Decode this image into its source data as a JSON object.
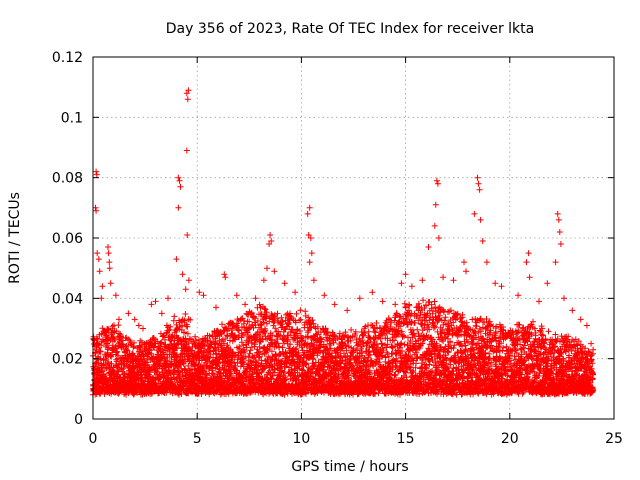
{
  "chart_data": {
    "type": "scatter",
    "title": "Day 356 of 2023, Rate Of TEC Index for receiver lkta",
    "xlabel": "GPS time / hours",
    "ylabel": "ROTI / TECUs",
    "xlim": [
      0,
      25
    ],
    "ylim": [
      0,
      0.12
    ],
    "x_ticks": [
      0,
      5,
      10,
      15,
      20,
      25
    ],
    "x_tick_labels": [
      "0",
      "5",
      "10",
      "15",
      "20",
      "25"
    ],
    "y_ticks": [
      0,
      0.02,
      0.04,
      0.06,
      0.08,
      0.1,
      0.12
    ],
    "y_tick_labels": [
      "0",
      "0.02",
      "0.04",
      "0.06",
      "0.08",
      "0.1",
      "0.12"
    ],
    "grid": true,
    "marker": "+",
    "series": [
      {
        "name": "ROTI",
        "color": "#ff0000",
        "points": [
          [
            0.1,
            0.022
          ],
          [
            0.15,
            0.082
          ],
          [
            0.18,
            0.081
          ],
          [
            0.12,
            0.07
          ],
          [
            0.15,
            0.069
          ],
          [
            0.2,
            0.055
          ],
          [
            0.28,
            0.053
          ],
          [
            0.32,
            0.049
          ],
          [
            0.45,
            0.044
          ],
          [
            0.4,
            0.04
          ],
          [
            0.72,
            0.057
          ],
          [
            0.75,
            0.055
          ],
          [
            0.78,
            0.052
          ],
          [
            0.8,
            0.05
          ],
          [
            0.85,
            0.045
          ],
          [
            1.1,
            0.041
          ],
          [
            1.25,
            0.033
          ],
          [
            1.7,
            0.035
          ],
          [
            2.0,
            0.033
          ],
          [
            2.2,
            0.031
          ],
          [
            2.4,
            0.03
          ],
          [
            2.8,
            0.038
          ],
          [
            3.0,
            0.039
          ],
          [
            3.3,
            0.035
          ],
          [
            3.6,
            0.04
          ],
          [
            3.9,
            0.034
          ],
          [
            4.1,
            0.08
          ],
          [
            4.15,
            0.079
          ],
          [
            4.2,
            0.077
          ],
          [
            4.1,
            0.07
          ],
          [
            4.0,
            0.053
          ],
          [
            4.3,
            0.048
          ],
          [
            4.45,
            0.043
          ],
          [
            4.5,
            0.108
          ],
          [
            4.55,
            0.106
          ],
          [
            4.58,
            0.109
          ],
          [
            4.5,
            0.089
          ],
          [
            4.52,
            0.061
          ],
          [
            4.6,
            0.046
          ],
          [
            5.1,
            0.042
          ],
          [
            5.3,
            0.041
          ],
          [
            5.9,
            0.037
          ],
          [
            6.3,
            0.048
          ],
          [
            6.35,
            0.047
          ],
          [
            6.9,
            0.041
          ],
          [
            7.3,
            0.038
          ],
          [
            7.8,
            0.04
          ],
          [
            8.2,
            0.046
          ],
          [
            8.35,
            0.05
          ],
          [
            8.45,
            0.058
          ],
          [
            8.5,
            0.061
          ],
          [
            8.55,
            0.059
          ],
          [
            8.7,
            0.049
          ],
          [
            9.2,
            0.045
          ],
          [
            9.7,
            0.042
          ],
          [
            10.3,
            0.068
          ],
          [
            10.4,
            0.07
          ],
          [
            10.35,
            0.061
          ],
          [
            10.45,
            0.06
          ],
          [
            10.5,
            0.055
          ],
          [
            10.4,
            0.052
          ],
          [
            10.6,
            0.046
          ],
          [
            11.1,
            0.041
          ],
          [
            11.6,
            0.038
          ],
          [
            12.2,
            0.036
          ],
          [
            12.8,
            0.04
          ],
          [
            13.4,
            0.042
          ],
          [
            13.9,
            0.039
          ],
          [
            14.5,
            0.038
          ],
          [
            14.8,
            0.045
          ],
          [
            15.0,
            0.048
          ],
          [
            15.3,
            0.044
          ],
          [
            15.8,
            0.046
          ],
          [
            16.1,
            0.057
          ],
          [
            16.4,
            0.064
          ],
          [
            16.5,
            0.079
          ],
          [
            16.55,
            0.078
          ],
          [
            16.45,
            0.071
          ],
          [
            16.6,
            0.06
          ],
          [
            16.8,
            0.047
          ],
          [
            17.3,
            0.046
          ],
          [
            17.8,
            0.052
          ],
          [
            17.9,
            0.049
          ],
          [
            18.3,
            0.068
          ],
          [
            18.45,
            0.08
          ],
          [
            18.5,
            0.078
          ],
          [
            18.55,
            0.076
          ],
          [
            18.6,
            0.066
          ],
          [
            18.7,
            0.059
          ],
          [
            18.9,
            0.052
          ],
          [
            19.3,
            0.045
          ],
          [
            19.6,
            0.044
          ],
          [
            20.4,
            0.041
          ],
          [
            20.8,
            0.052
          ],
          [
            20.9,
            0.055
          ],
          [
            20.95,
            0.047
          ],
          [
            21.4,
            0.039
          ],
          [
            21.8,
            0.045
          ],
          [
            22.2,
            0.052
          ],
          [
            22.3,
            0.068
          ],
          [
            22.35,
            0.066
          ],
          [
            22.4,
            0.062
          ],
          [
            22.45,
            0.058
          ],
          [
            22.6,
            0.04
          ],
          [
            23.0,
            0.036
          ],
          [
            23.4,
            0.033
          ],
          [
            23.7,
            0.031
          ],
          [
            23.9,
            0.025
          ]
        ],
        "dense_band": {
          "description": "continuous dense band of samples every ~0.02 h from 0 to 24 h",
          "x_range": [
            0.0,
            24.0
          ],
          "base_floor": 0.009,
          "base_typical": 0.015,
          "upper_envelope": [
            [
              0.0,
              0.028
            ],
            [
              1.0,
              0.032
            ],
            [
              2.0,
              0.025
            ],
            [
              3.0,
              0.027
            ],
            [
              4.0,
              0.033
            ],
            [
              4.5,
              0.035
            ],
            [
              5.0,
              0.026
            ],
            [
              6.0,
              0.03
            ],
            [
              7.0,
              0.034
            ],
            [
              8.0,
              0.038
            ],
            [
              9.0,
              0.034
            ],
            [
              10.0,
              0.036
            ],
            [
              11.0,
              0.031
            ],
            [
              12.0,
              0.028
            ],
            [
              13.0,
              0.03
            ],
            [
              14.0,
              0.033
            ],
            [
              15.0,
              0.038
            ],
            [
              16.0,
              0.04
            ],
            [
              17.0,
              0.036
            ],
            [
              18.0,
              0.035
            ],
            [
              19.0,
              0.033
            ],
            [
              20.0,
              0.03
            ],
            [
              21.0,
              0.032
            ],
            [
              22.0,
              0.028
            ],
            [
              23.0,
              0.027
            ],
            [
              24.0,
              0.022
            ]
          ]
        }
      }
    ]
  }
}
